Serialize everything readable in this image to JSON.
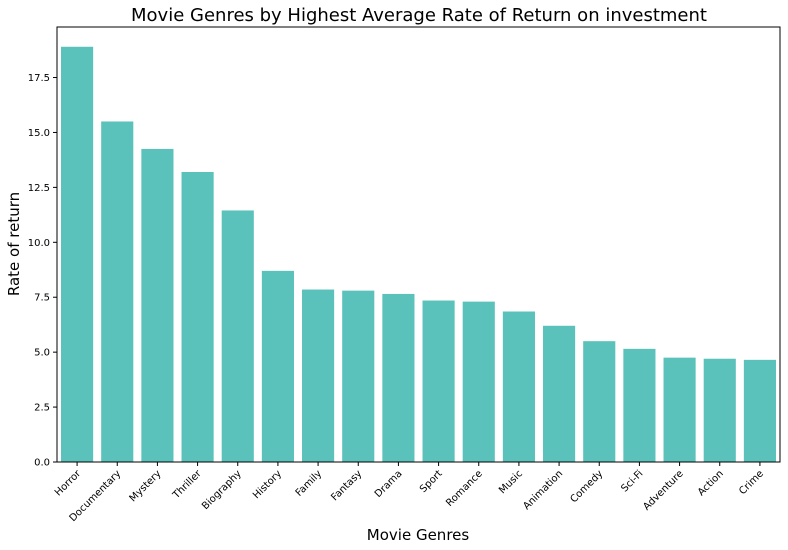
{
  "chart_data": {
    "type": "bar",
    "title": "Movie Genres by Highest Average Rate of Return on investment",
    "xlabel": "Movie Genres",
    "ylabel": "Rate of return",
    "categories": [
      "Horror",
      "Documentary",
      "Mystery",
      "Thriller",
      "Biography",
      "History",
      "Family",
      "Fantasy",
      "Drama",
      "Sport",
      "Romance",
      "Music",
      "Animation",
      "Comedy",
      "Sci-Fi",
      "Adventure",
      "Action",
      "Crime"
    ],
    "values": [
      18.9,
      15.5,
      14.25,
      13.2,
      11.45,
      8.7,
      7.85,
      7.8,
      7.65,
      7.35,
      7.3,
      6.85,
      6.2,
      5.5,
      5.15,
      4.75,
      4.7,
      4.65
    ],
    "ylim": [
      0,
      19.8
    ],
    "yticks": [
      "0.0",
      "2.5",
      "5.0",
      "7.5",
      "10.0",
      "12.5",
      "15.0",
      "17.5"
    ],
    "bar_color": "#5bc2bb",
    "grid": false,
    "legend": "none"
  }
}
